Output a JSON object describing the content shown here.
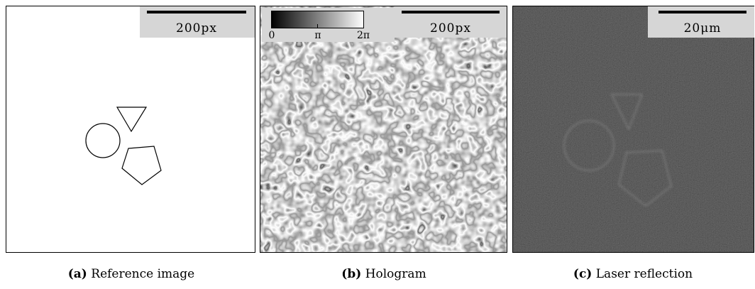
{
  "panels": [
    {
      "scale_bar": "200px",
      "caption_label": "(a)",
      "caption": "Reference image"
    },
    {
      "scale_bar": "200px",
      "colorbar_ticks": [
        "0",
        "π",
        "2π"
      ],
      "caption_label": "(b)",
      "caption": "Hologram"
    },
    {
      "scale_bar": "20μm",
      "caption_label": "(c)",
      "caption": "Laser reflection"
    }
  ]
}
